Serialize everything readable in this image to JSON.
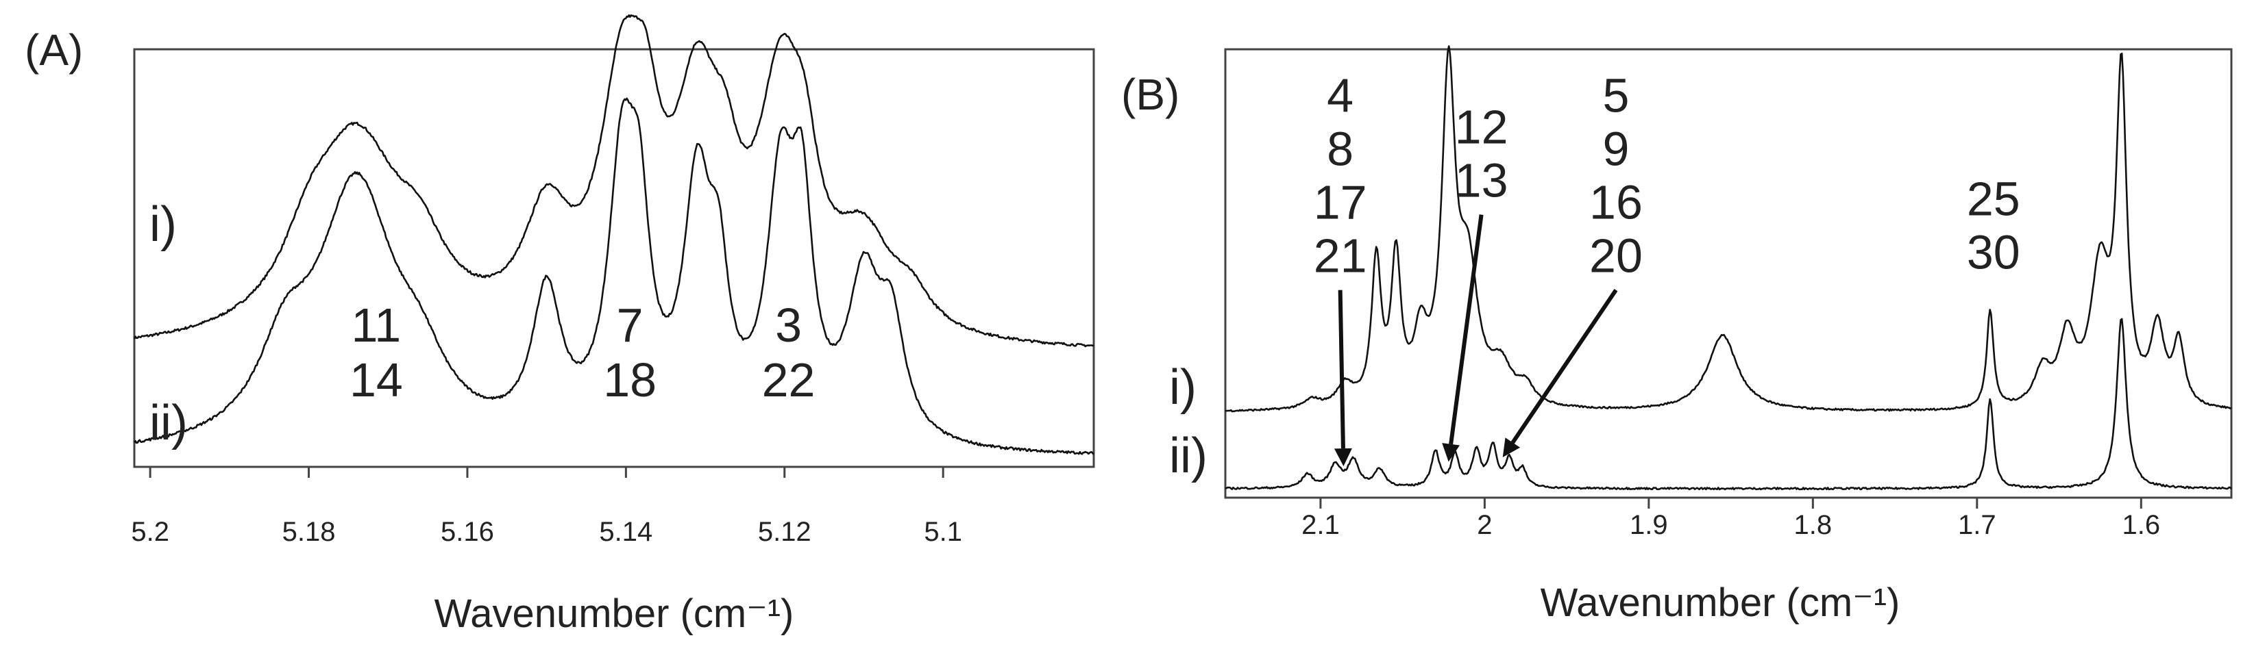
{
  "chart_data": [
    {
      "type": "line",
      "panel_label": "(A)",
      "xlabel": "Wavenumber (cm⁻¹)",
      "ylabel": "",
      "xlim": [
        5.202,
        5.081
      ],
      "x_reversed": true,
      "ylim": [
        0,
        1
      ],
      "x_ticks": [
        5.2,
        5.18,
        5.16,
        5.14,
        5.12,
        5.1
      ],
      "x_tick_labels": [
        "5.2",
        "5.18",
        "5.16",
        "5.14",
        "5.12",
        "5.1"
      ],
      "series": [
        {
          "name": "i)",
          "baseline": 0.27,
          "peaks": [
            [
              5.18,
              0.12,
              0.004
            ],
            [
              5.174,
              0.47,
              0.007
            ],
            [
              5.166,
              0.13,
              0.004
            ],
            [
              5.15,
              0.26,
              0.0035
            ],
            [
              5.1405,
              0.55,
              0.0034
            ],
            [
              5.1375,
              0.28,
              0.0022
            ],
            [
              5.131,
              0.51,
              0.0034
            ],
            [
              5.1275,
              0.2,
              0.0022
            ],
            [
              5.1205,
              0.54,
              0.0034
            ],
            [
              5.1175,
              0.24,
              0.0022
            ],
            [
              5.11,
              0.22,
              0.0045
            ],
            [
              5.104,
              0.07,
              0.003
            ]
          ]
        },
        {
          "name": "ii)",
          "baseline": 0.02,
          "peaks": [
            [
              5.183,
              0.18,
              0.004
            ],
            [
              5.174,
              0.62,
              0.006
            ],
            [
              5.166,
              0.12,
              0.004
            ],
            [
              5.15,
              0.34,
              0.0022
            ],
            [
              5.1405,
              0.62,
              0.0021
            ],
            [
              5.1383,
              0.4,
              0.0016
            ],
            [
              5.131,
              0.58,
              0.0021
            ],
            [
              5.1283,
              0.3,
              0.0015
            ],
            [
              5.1205,
              0.58,
              0.0021
            ],
            [
              5.1178,
              0.48,
              0.0016
            ],
            [
              5.11,
              0.37,
              0.0025
            ],
            [
              5.1065,
              0.25,
              0.002
            ]
          ]
        }
      ],
      "annotations": [
        {
          "lines": [
            "11",
            "14"
          ],
          "x": 5.1715,
          "y": 0.3
        },
        {
          "lines": [
            "7",
            "18"
          ],
          "x": 5.1395,
          "y": 0.3
        },
        {
          "lines": [
            "3",
            "22"
          ],
          "x": 5.1195,
          "y": 0.3
        }
      ]
    },
    {
      "type": "line",
      "panel_label": "(B)",
      "xlabel": "Wavenumber (cm⁻¹)",
      "ylabel": "",
      "xlim": [
        2.158,
        1.545
      ],
      "x_reversed": true,
      "ylim": [
        0,
        1
      ],
      "x_ticks": [
        2.1,
        2.0,
        1.9,
        1.8,
        1.7,
        1.6
      ],
      "x_tick_labels": [
        "2.1",
        "2",
        "1.9",
        "1.8",
        "1.7",
        "1.6"
      ],
      "series": [
        {
          "name": "i)",
          "baseline": 0.19,
          "peaks": [
            [
              2.105,
              0.02,
              0.006
            ],
            [
              2.085,
              0.05,
              0.006
            ],
            [
              2.066,
              0.32,
              0.0035
            ],
            [
              2.054,
              0.32,
              0.0035
            ],
            [
              2.039,
              0.14,
              0.005
            ],
            [
              2.022,
              0.72,
              0.005
            ],
            [
              2.01,
              0.28,
              0.007
            ],
            [
              1.99,
              0.08,
              0.008
            ],
            [
              1.975,
              0.04,
              0.006
            ],
            [
              1.855,
              0.17,
              0.011
            ],
            [
              1.692,
              0.22,
              0.0025
            ],
            [
              1.66,
              0.08,
              0.006
            ],
            [
              1.645,
              0.15,
              0.006
            ],
            [
              1.625,
              0.3,
              0.007
            ],
            [
              1.612,
              0.72,
              0.0038
            ],
            [
              1.59,
              0.17,
              0.005
            ],
            [
              1.577,
              0.14,
              0.004
            ]
          ]
        },
        {
          "name": "ii)",
          "baseline": 0.02,
          "peaks": [
            [
              2.108,
              0.03,
              0.004
            ],
            [
              2.091,
              0.05,
              0.004
            ],
            [
              2.08,
              0.06,
              0.004
            ],
            [
              2.064,
              0.04,
              0.004
            ],
            [
              2.03,
              0.08,
              0.003
            ],
            [
              2.018,
              0.07,
              0.003
            ],
            [
              2.005,
              0.08,
              0.003
            ],
            [
              1.995,
              0.09,
              0.003
            ],
            [
              1.985,
              0.06,
              0.003
            ],
            [
              1.977,
              0.04,
              0.003
            ],
            [
              1.692,
              0.2,
              0.0025
            ],
            [
              1.612,
              0.38,
              0.0035
            ]
          ]
        }
      ],
      "annotations": [
        {
          "lines": [
            "4",
            "8",
            "17",
            "21"
          ],
          "x": 2.088,
          "y": 0.86,
          "arrow_to": [
            2.086,
            0.07
          ]
        },
        {
          "lines": [
            "12",
            "13"
          ],
          "x": 2.002,
          "y": 0.79,
          "arrow_to": [
            2.022,
            0.08
          ]
        },
        {
          "lines": [
            "5",
            "9",
            "16",
            "20"
          ],
          "x": 1.92,
          "y": 0.86,
          "arrow_to": [
            1.989,
            0.09
          ]
        },
        {
          "lines": [
            "25",
            "30"
          ],
          "x": 1.69,
          "y": 0.63
        }
      ]
    }
  ]
}
